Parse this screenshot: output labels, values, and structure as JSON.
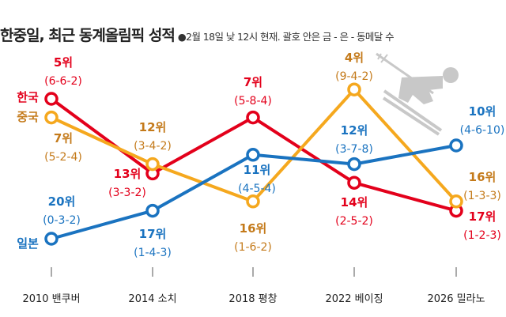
{
  "header": {
    "title": "한중일, 최근 동계올림픽 성적",
    "subtitle": "●2월 18일 낮 12시 현재. 괄호 안은 금 - 은 - 동메달 수"
  },
  "chart_data": {
    "type": "line",
    "categories": [
      "2010 밴쿠버",
      "2014 소치",
      "2018 평창",
      "2022 베이징",
      "2026 밀라노"
    ],
    "y_meaning": "rank (inverted, lower is higher)",
    "ylim": [
      0,
      20
    ],
    "grid": false,
    "legend": "inline-left",
    "decoration": "skier-icon",
    "series": [
      {
        "name": "한국",
        "color": "#e3001b",
        "label_color": "#e3001b",
        "ranks": [
          5,
          13,
          7,
          14,
          17
        ],
        "rank_labels": [
          "5위",
          "13위",
          "7위",
          "14위",
          "17위"
        ],
        "medals": [
          "(6-6-2)",
          "(3-3-2)",
          "(5-8-4)",
          "(2-5-2)",
          "(1-2-3)"
        ]
      },
      {
        "name": "중국",
        "color": "#f5a81e",
        "label_color": "#c47a1a",
        "ranks": [
          7,
          12,
          16,
          4,
          16
        ],
        "rank_labels": [
          "7위",
          "12위",
          "16위",
          "4위",
          "16위"
        ],
        "medals": [
          "(5-2-4)",
          "(3-4-2)",
          "(1-6-2)",
          "(9-4-2)",
          "(1-3-3)"
        ]
      },
      {
        "name": "일본",
        "color": "#1a73c0",
        "label_color": "#1a73c0",
        "ranks": [
          20,
          17,
          11,
          12,
          10
        ],
        "rank_labels": [
          "20위",
          "17위",
          "11위",
          "12위",
          "10위"
        ],
        "medals": [
          "(0-3-2)",
          "(1-4-3)",
          "(4-5-4)",
          "(3-7-8)",
          "(4-6-10)"
        ]
      }
    ]
  }
}
